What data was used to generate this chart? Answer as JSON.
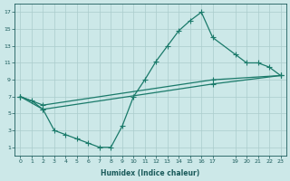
{
  "xlabel": "Humidex (Indice chaleur)",
  "bg_color": "#cce8e8",
  "grid_color": "#aacccc",
  "line_color": "#1a7a6a",
  "xlim": [
    -0.5,
    23.5
  ],
  "ylim": [
    0,
    18
  ],
  "xticks": [
    0,
    1,
    2,
    3,
    4,
    5,
    6,
    7,
    8,
    9,
    10,
    11,
    12,
    13,
    14,
    15,
    16,
    17,
    19,
    20,
    21,
    22,
    23
  ],
  "yticks": [
    1,
    3,
    5,
    7,
    9,
    11,
    13,
    15,
    17
  ],
  "line1_x": [
    0,
    1,
    2,
    3,
    4,
    5,
    6,
    7,
    8,
    9,
    10,
    11,
    12,
    13,
    14,
    15,
    16,
    17,
    19,
    20,
    21,
    22,
    23
  ],
  "line1_y": [
    7,
    6.5,
    5.5,
    3,
    2.5,
    2,
    1.5,
    1,
    1,
    3.5,
    7,
    9,
    11.2,
    13,
    14.8,
    16.0,
    17.0,
    14.0,
    12.0,
    11.0,
    11.0,
    10.5,
    9.5
  ],
  "line2_x": [
    0,
    2,
    17,
    23
  ],
  "line2_y": [
    7,
    6.0,
    9.0,
    9.5
  ],
  "line3_x": [
    0,
    2,
    17,
    23
  ],
  "line3_y": [
    7,
    5.5,
    8.5,
    9.5
  ]
}
